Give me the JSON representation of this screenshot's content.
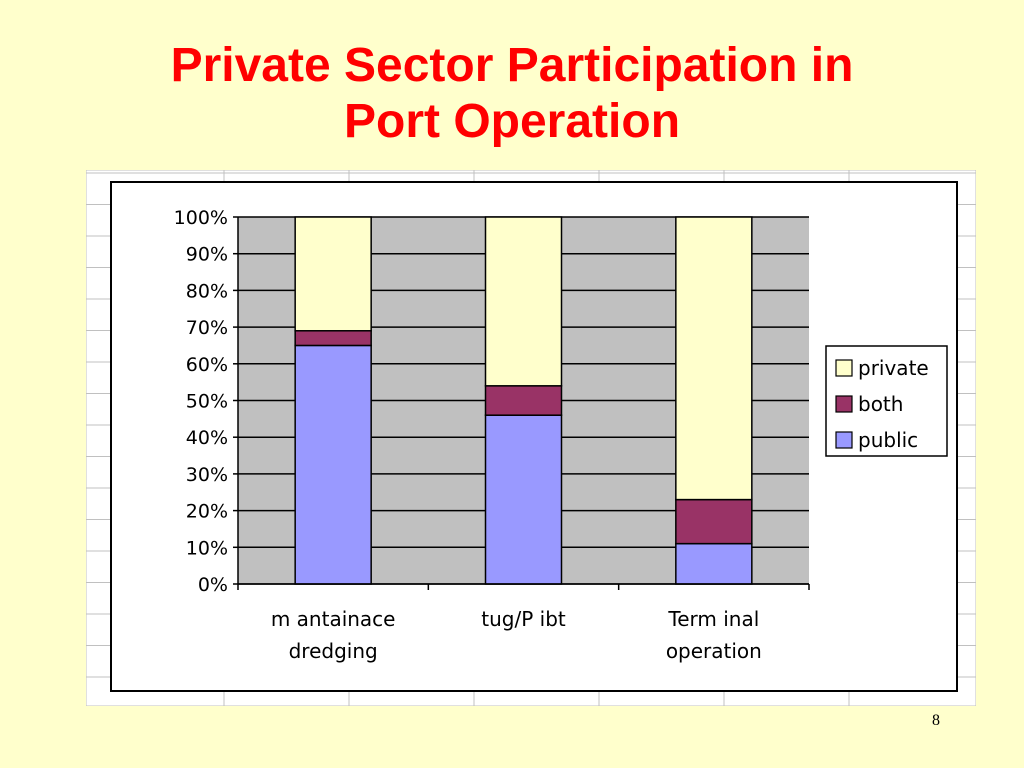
{
  "slide": {
    "title_line1": "Private Sector Participation in",
    "title_line2": "Port Operation",
    "page_number": "8"
  },
  "chart_data": {
    "type": "bar",
    "stacked": true,
    "percent_stacked": true,
    "categories": [
      [
        "m antainace",
        "dredging"
      ],
      [
        "tug/P ibt"
      ],
      [
        "Term inal",
        "operation"
      ]
    ],
    "series": [
      {
        "name": "public",
        "values": [
          65,
          46,
          11
        ],
        "color": "#9999ff"
      },
      {
        "name": "both",
        "values": [
          4,
          8,
          12
        ],
        "color": "#993366"
      },
      {
        "name": "private",
        "values": [
          31,
          46,
          77
        ],
        "color": "#ffffcc"
      }
    ],
    "legend_order": [
      "private",
      "both",
      "public"
    ],
    "y_ticks": [
      "0%",
      "10%",
      "20%",
      "30%",
      "40%",
      "50%",
      "60%",
      "70%",
      "80%",
      "90%",
      "100%"
    ],
    "ylim": [
      0,
      100
    ],
    "grid": true,
    "plot_background": "#c0c0c0",
    "legend_position": "right"
  }
}
